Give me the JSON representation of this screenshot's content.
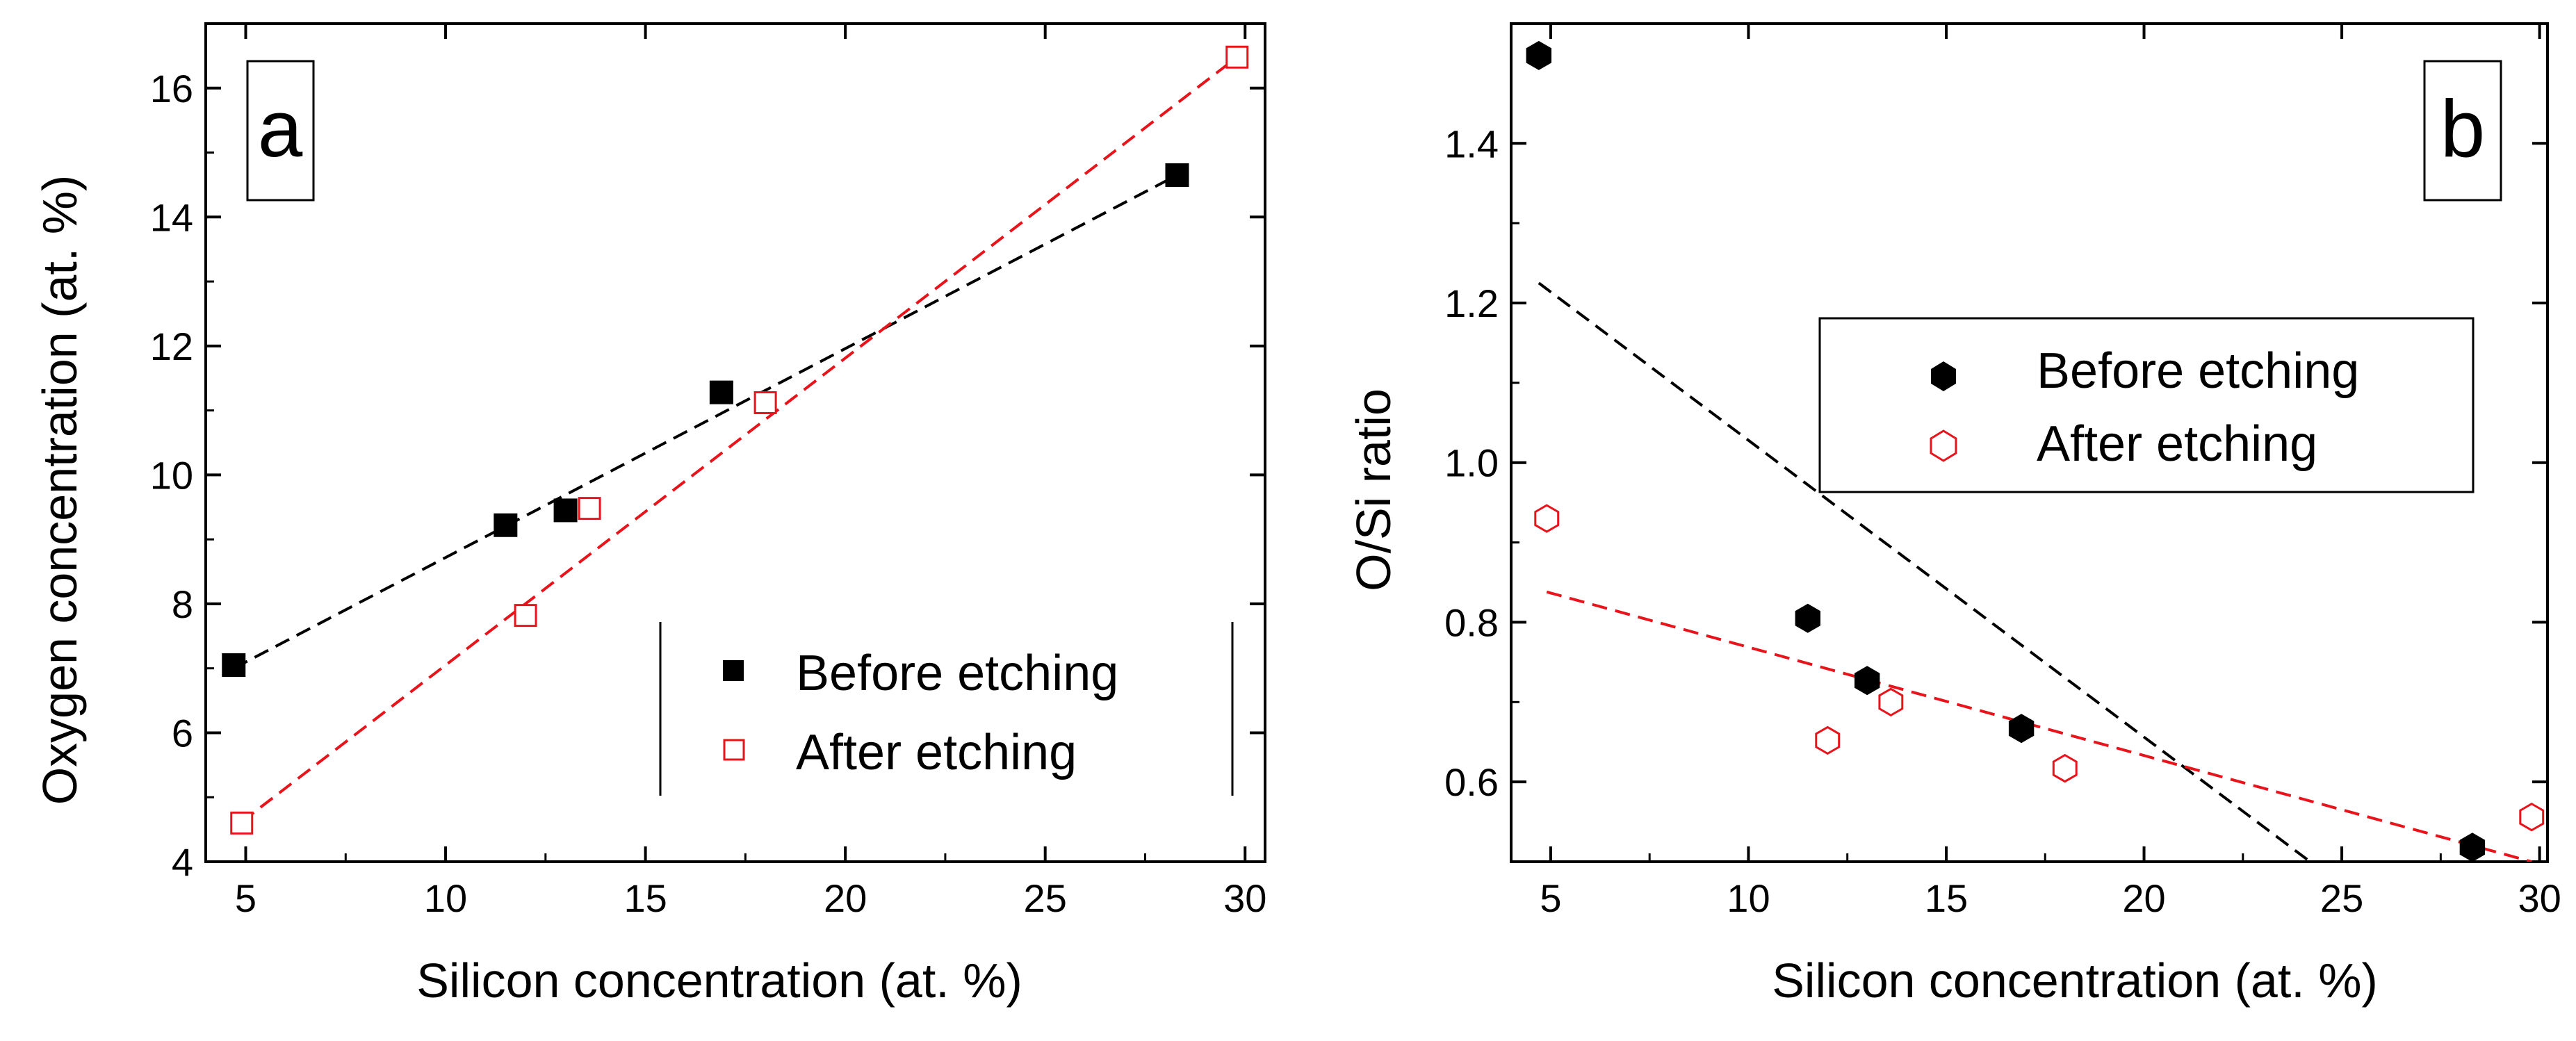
{
  "figure": {
    "panels": [
      "a",
      "b"
    ]
  },
  "chart_data": [
    {
      "type": "scatter",
      "panel_label": "a",
      "title": "",
      "xlabel": "Silicon concentration (at. %)",
      "ylabel": "Oxygen concentration (at. %)",
      "xlim": [
        4,
        30.5
      ],
      "ylim": [
        4,
        17
      ],
      "xticks": [
        5,
        10,
        15,
        20,
        25,
        30
      ],
      "yticks": [
        4,
        6,
        8,
        10,
        12,
        14,
        16
      ],
      "grid": false,
      "legend_position": "lower-right",
      "series": [
        {
          "name": "Before etching",
          "marker": "filled-square",
          "color": "#000000",
          "x": [
            4.7,
            11.5,
            13.0,
            16.9,
            28.3
          ],
          "y": [
            7.05,
            9.22,
            9.45,
            11.28,
            14.65
          ],
          "fit": {
            "style": "dashed",
            "x": [
              4.7,
              28.3
            ],
            "y": [
              7.0,
              14.65
            ]
          }
        },
        {
          "name": "After etching",
          "marker": "open-square",
          "color": "#e8141b",
          "x": [
            4.9,
            12.0,
            13.6,
            18.0,
            29.8
          ],
          "y": [
            4.6,
            7.82,
            9.48,
            11.12,
            16.48
          ],
          "fit": {
            "style": "dashed",
            "x": [
              4.9,
              29.8
            ],
            "y": [
              4.62,
              16.48
            ]
          }
        }
      ]
    },
    {
      "type": "scatter",
      "panel_label": "b",
      "title": "",
      "xlabel": "Silicon concentration (at. %)",
      "ylabel": "O/Si ratio",
      "xlim": [
        4,
        30.2
      ],
      "ylim": [
        0.5,
        1.55
      ],
      "xticks": [
        5,
        10,
        15,
        20,
        25,
        30
      ],
      "xtick_labels": [
        "5",
        "10",
        "15",
        "20",
        "25",
        "30"
      ],
      "yticks": [
        0.6,
        0.8,
        1.0,
        1.2,
        1.4
      ],
      "ytick_labels": [
        "0.6",
        "0.8",
        "1.0",
        "1.2",
        "1.4"
      ],
      "grid": false,
      "legend_position": "upper-right",
      "series": [
        {
          "name": "Before etching",
          "marker": "filled-hexagon",
          "color": "#000000",
          "x": [
            4.7,
            11.5,
            13.0,
            16.9,
            28.3
          ],
          "y": [
            1.51,
            0.805,
            0.727,
            0.667,
            0.518
          ],
          "fit": {
            "style": "dashed",
            "x": [
              4.7,
              24.2
            ],
            "y": [
              1.225,
              0.5
            ]
          }
        },
        {
          "name": "After etching",
          "marker": "open-hexagon",
          "color": "#e8141b",
          "x": [
            4.9,
            12.0,
            13.6,
            18.0,
            29.8
          ],
          "y": [
            0.93,
            0.652,
            0.7,
            0.617,
            0.556
          ],
          "fit": {
            "style": "dashed",
            "x": [
              4.9,
              29.8
            ],
            "y": [
              0.838,
              0.5
            ]
          }
        }
      ]
    }
  ]
}
